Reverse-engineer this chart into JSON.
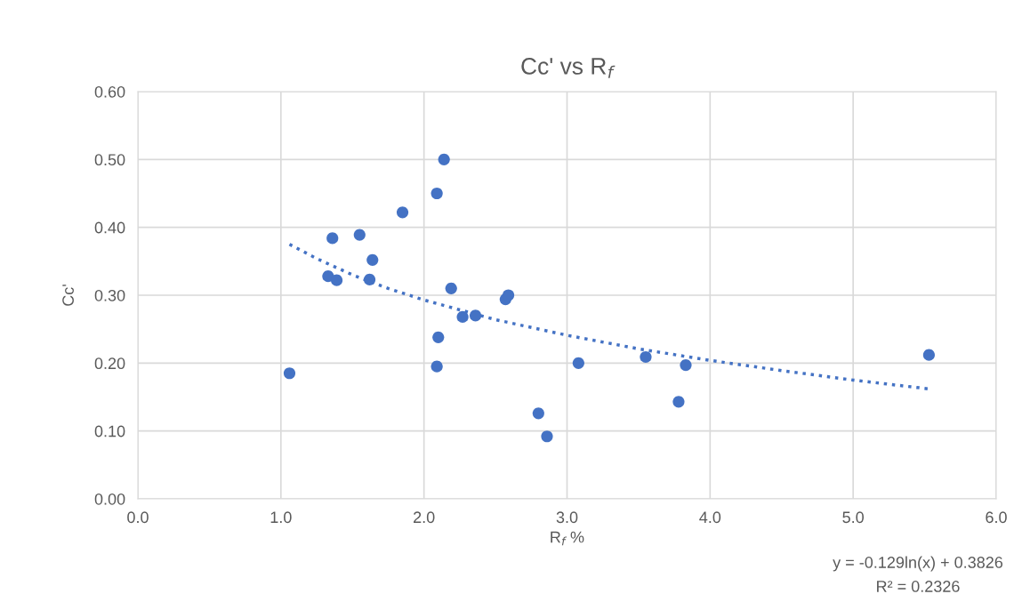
{
  "chart_data": {
    "type": "scatter",
    "title": "Cc' vs R$_{f}$",
    "xlabel": "R$_{f}$ %",
    "ylabel": "Cc'",
    "xlim": [
      0,
      6
    ],
    "ylim": [
      0,
      0.6
    ],
    "xticks": [
      {
        "value": 0,
        "label": "0.0"
      },
      {
        "value": 1,
        "label": "1.0"
      },
      {
        "value": 2,
        "label": "2.0"
      },
      {
        "value": 3,
        "label": "3.0"
      },
      {
        "value": 4,
        "label": "4.0"
      },
      {
        "value": 5,
        "label": "5.0"
      },
      {
        "value": 6,
        "label": "6.0"
      }
    ],
    "yticks": [
      {
        "value": 0,
        "label": "0.00"
      },
      {
        "value": 0.1,
        "label": "0.10"
      },
      {
        "value": 0.2,
        "label": "0.20"
      },
      {
        "value": 0.3,
        "label": "0.30"
      },
      {
        "value": 0.4,
        "label": "0.40"
      },
      {
        "value": 0.5,
        "label": "0.50"
      },
      {
        "value": 0.6,
        "label": "0.60"
      }
    ],
    "grid": true,
    "marker": "circle",
    "series": [
      {
        "color": "#4472c4",
        "x": [
          1.06,
          1.33,
          1.36,
          1.39,
          1.55,
          1.62,
          1.64,
          1.85,
          2.09,
          2.14,
          2.19,
          2.1,
          2.09,
          2.27,
          2.36,
          2.57,
          2.59,
          2.8,
          2.86,
          3.08,
          3.55,
          3.78,
          3.83,
          5.53
        ],
        "values": [
          0.185,
          0.328,
          0.384,
          0.322,
          0.389,
          0.323,
          0.352,
          0.422,
          0.45,
          0.5,
          0.31,
          0.238,
          0.195,
          0.268,
          0.27,
          0.294,
          0.3,
          0.126,
          0.092,
          0.2,
          0.209,
          0.143,
          0.197,
          0.212
        ]
      },
      {
        "type": "line",
        "line_style": "dotted",
        "marker": "none",
        "color": "#4472c4",
        "x": [
          1.06,
          1.25,
          1.5,
          1.75,
          2.0,
          2.5,
          3.0,
          3.5,
          4.0,
          4.5,
          5.0,
          5.53
        ],
        "values": [
          0.375,
          0.354,
          0.33,
          0.31,
          0.293,
          0.264,
          0.241,
          0.221,
          0.204,
          0.189,
          0.175,
          0.162
        ]
      }
    ],
    "annotations": [
      "y = -0.129ln(x) + 0.3826",
      "R² = 0.2326"
    ]
  }
}
